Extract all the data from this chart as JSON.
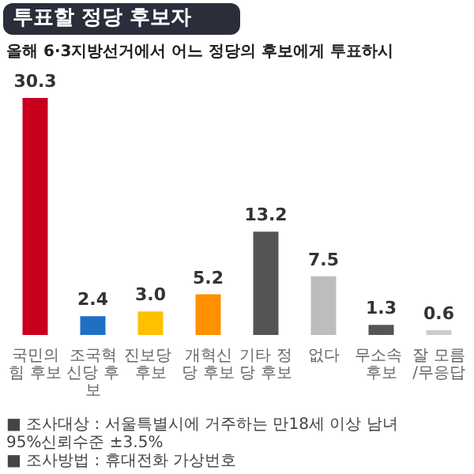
{
  "chart_data": {
    "type": "bar",
    "title": "투표할 정당 후보자",
    "subtitle": "올해 6·3지방선거에서 어느 정당의 후보에게 투표하시",
    "categories": [
      "국민의힘 후보",
      "조국혁신당 후보",
      "진보당 후보",
      "개혁신당 후보",
      "기타 정당 후보",
      "없다",
      "무소속 후보",
      "잘 모름/무응답"
    ],
    "values": [
      30.3,
      2.4,
      3.0,
      5.2,
      13.2,
      7.5,
      1.3,
      0.6
    ],
    "colors": [
      "#c8001e",
      "#1f6fc5",
      "#ffc000",
      "#ff9000",
      "#555555",
      "#bdbdbd",
      "#555555",
      "#cccccc"
    ],
    "value_labels": [
      "30.3",
      "2.4",
      "3.0",
      "5.2",
      "13.2",
      "7.5",
      "1.3",
      "0.6"
    ],
    "annotations": [
      "■ 조사대상 : 서울특별시에 거주하는 만18세 이상 남녀",
      "95%신뢰수준 ±3.5%",
      "■ 조사방법 : 휴대전화 가상번호"
    ]
  }
}
